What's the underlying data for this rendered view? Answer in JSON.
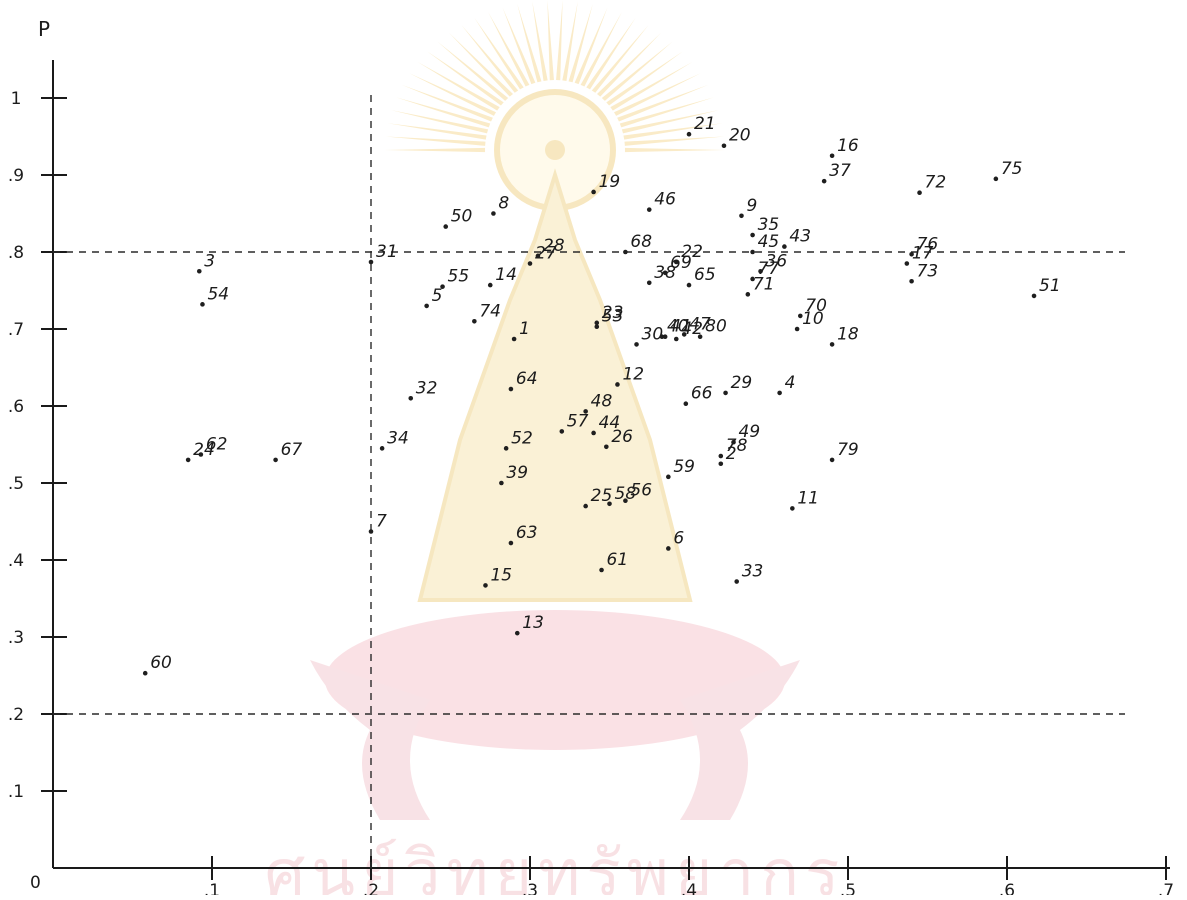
{
  "chart_data": {
    "type": "scatter",
    "title": "",
    "xlabel": "",
    "ylabel": "P",
    "origin_label": "0",
    "xlim": [
      0,
      0.7
    ],
    "ylim": [
      0,
      1.1
    ],
    "x_ticks": [
      {
        "value": 0.1,
        "label": ".1"
      },
      {
        "value": 0.2,
        "label": ".2"
      },
      {
        "value": 0.3,
        "label": ".3"
      },
      {
        "value": 0.4,
        "label": ".4"
      },
      {
        "value": 0.5,
        "label": ".5"
      },
      {
        "value": 0.6,
        "label": ".6"
      },
      {
        "value": 0.7,
        "label": ".7"
      }
    ],
    "y_ticks": [
      {
        "value": 0.1,
        "label": ".1"
      },
      {
        "value": 0.2,
        "label": ".2"
      },
      {
        "value": 0.3,
        "label": ".3"
      },
      {
        "value": 0.4,
        "label": ".4"
      },
      {
        "value": 0.5,
        "label": ".5"
      },
      {
        "value": 0.6,
        "label": ".6"
      },
      {
        "value": 0.7,
        "label": ".7"
      },
      {
        "value": 0.8,
        "label": ".8"
      },
      {
        "value": 0.9,
        "label": ".9"
      },
      {
        "value": 1.0,
        "label": "1"
      }
    ],
    "reference_lines": {
      "x": [
        0.2
      ],
      "y": [
        0.2,
        0.8
      ]
    },
    "grid": false,
    "points": [
      {
        "label": "1",
        "x": 0.29,
        "y": 0.687
      },
      {
        "label": "2",
        "x": 0.42,
        "y": 0.525
      },
      {
        "label": "3",
        "x": 0.092,
        "y": 0.775
      },
      {
        "label": "4",
        "x": 0.457,
        "y": 0.617
      },
      {
        "label": "5",
        "x": 0.235,
        "y": 0.73
      },
      {
        "label": "6",
        "x": 0.387,
        "y": 0.415
      },
      {
        "label": "7",
        "x": 0.2,
        "y": 0.437
      },
      {
        "label": "8",
        "x": 0.277,
        "y": 0.85
      },
      {
        "label": "9",
        "x": 0.433,
        "y": 0.847
      },
      {
        "label": "10",
        "x": 0.468,
        "y": 0.7
      },
      {
        "label": "11",
        "x": 0.465,
        "y": 0.467
      },
      {
        "label": "12",
        "x": 0.355,
        "y": 0.628
      },
      {
        "label": "13",
        "x": 0.292,
        "y": 0.305
      },
      {
        "label": "14",
        "x": 0.275,
        "y": 0.757
      },
      {
        "label": "15",
        "x": 0.272,
        "y": 0.367
      },
      {
        "label": "16",
        "x": 0.49,
        "y": 0.925
      },
      {
        "label": "17",
        "x": 0.537,
        "y": 0.785
      },
      {
        "label": "18",
        "x": 0.49,
        "y": 0.68
      },
      {
        "label": "19",
        "x": 0.34,
        "y": 0.878
      },
      {
        "label": "20",
        "x": 0.422,
        "y": 0.938
      },
      {
        "label": "21",
        "x": 0.4,
        "y": 0.953
      },
      {
        "label": "22",
        "x": 0.392,
        "y": 0.787
      },
      {
        "label": "23",
        "x": 0.342,
        "y": 0.708
      },
      {
        "label": "24",
        "x": 0.085,
        "y": 0.53
      },
      {
        "label": "25",
        "x": 0.335,
        "y": 0.47
      },
      {
        "label": "26",
        "x": 0.348,
        "y": 0.547
      },
      {
        "label": "27",
        "x": 0.3,
        "y": 0.785
      },
      {
        "label": "28",
        "x": 0.305,
        "y": 0.795
      },
      {
        "label": "29",
        "x": 0.423,
        "y": 0.617
      },
      {
        "label": "30",
        "x": 0.367,
        "y": 0.68
      },
      {
        "label": "31",
        "x": 0.2,
        "y": 0.787
      },
      {
        "label": "32",
        "x": 0.225,
        "y": 0.61
      },
      {
        "label": "33",
        "x": 0.43,
        "y": 0.372
      },
      {
        "label": "34",
        "x": 0.207,
        "y": 0.545
      },
      {
        "label": "35",
        "x": 0.44,
        "y": 0.822
      },
      {
        "label": "36",
        "x": 0.445,
        "y": 0.775
      },
      {
        "label": "37",
        "x": 0.485,
        "y": 0.892
      },
      {
        "label": "38",
        "x": 0.375,
        "y": 0.76
      },
      {
        "label": "39",
        "x": 0.282,
        "y": 0.5
      },
      {
        "label": "40",
        "x": 0.383,
        "y": 0.69
      },
      {
        "label": "41",
        "x": 0.385,
        "y": 0.69
      },
      {
        "label": "42",
        "x": 0.392,
        "y": 0.687
      },
      {
        "label": "43",
        "x": 0.46,
        "y": 0.807
      },
      {
        "label": "44",
        "x": 0.34,
        "y": 0.565
      },
      {
        "label": "45",
        "x": 0.44,
        "y": 0.8
      },
      {
        "label": "46",
        "x": 0.375,
        "y": 0.855
      },
      {
        "label": "47",
        "x": 0.397,
        "y": 0.693
      },
      {
        "label": "48",
        "x": 0.335,
        "y": 0.593
      },
      {
        "label": "49",
        "x": 0.428,
        "y": 0.553
      },
      {
        "label": "50",
        "x": 0.247,
        "y": 0.833
      },
      {
        "label": "51",
        "x": 0.617,
        "y": 0.743
      },
      {
        "label": "52",
        "x": 0.285,
        "y": 0.545
      },
      {
        "label": "53",
        "x": 0.342,
        "y": 0.703
      },
      {
        "label": "54",
        "x": 0.094,
        "y": 0.732
      },
      {
        "label": "55",
        "x": 0.245,
        "y": 0.755
      },
      {
        "label": "56",
        "x": 0.36,
        "y": 0.477
      },
      {
        "label": "57",
        "x": 0.32,
        "y": 0.567
      },
      {
        "label": "58",
        "x": 0.35,
        "y": 0.473
      },
      {
        "label": "59",
        "x": 0.387,
        "y": 0.508
      },
      {
        "label": "60",
        "x": 0.058,
        "y": 0.253
      },
      {
        "label": "61",
        "x": 0.345,
        "y": 0.387
      },
      {
        "label": "62",
        "x": 0.093,
        "y": 0.537
      },
      {
        "label": "63",
        "x": 0.288,
        "y": 0.422
      },
      {
        "label": "64",
        "x": 0.288,
        "y": 0.622
      },
      {
        "label": "65",
        "x": 0.4,
        "y": 0.757
      },
      {
        "label": "66",
        "x": 0.398,
        "y": 0.603
      },
      {
        "label": "67",
        "x": 0.14,
        "y": 0.53
      },
      {
        "label": "68",
        "x": 0.36,
        "y": 0.8
      },
      {
        "label": "69",
        "x": 0.385,
        "y": 0.773
      },
      {
        "label": "70",
        "x": 0.47,
        "y": 0.717
      },
      {
        "label": "71",
        "x": 0.437,
        "y": 0.745
      },
      {
        "label": "72",
        "x": 0.545,
        "y": 0.877
      },
      {
        "label": "73",
        "x": 0.54,
        "y": 0.762
      },
      {
        "label": "74",
        "x": 0.265,
        "y": 0.71
      },
      {
        "label": "75",
        "x": 0.593,
        "y": 0.895
      },
      {
        "label": "76",
        "x": 0.54,
        "y": 0.797
      },
      {
        "label": "77",
        "x": 0.44,
        "y": 0.765
      },
      {
        "label": "78",
        "x": 0.42,
        "y": 0.535
      },
      {
        "label": "79",
        "x": 0.49,
        "y": 0.53
      },
      {
        "label": "80",
        "x": 0.407,
        "y": 0.69
      }
    ]
  },
  "colors": {
    "ink": "#1f1f1f",
    "background": "#ffffff",
    "watermark_gold": "#f5dfa6",
    "watermark_pink": "#f3c4cb"
  },
  "watermark": {
    "kind": "university-emblem-seal",
    "text": "ศูนย์วิทยทรัพยากร"
  }
}
